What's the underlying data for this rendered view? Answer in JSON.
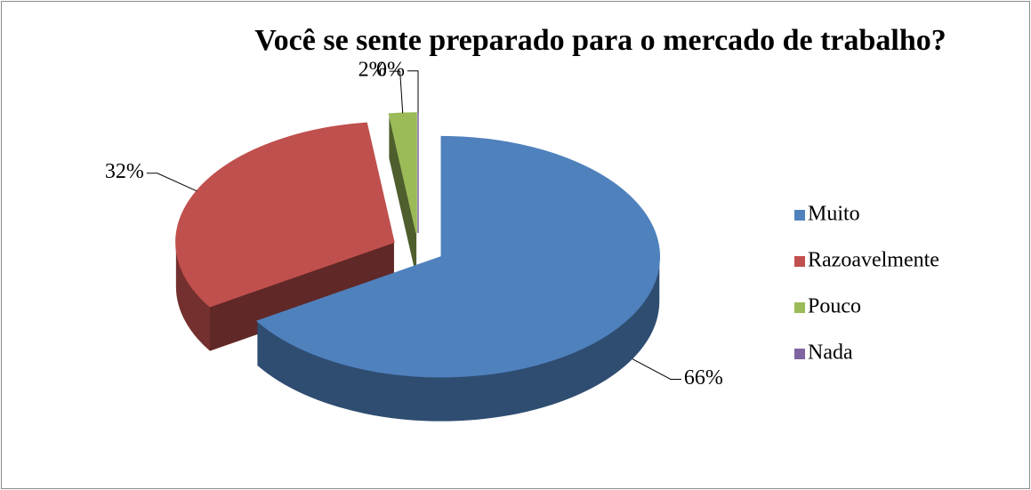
{
  "chart_data": {
    "type": "pie",
    "title": "Você se sente preparado para o mercado de trabalho?",
    "categories": [
      "Muito",
      "Razoavelmente",
      "Pouco",
      "Nada"
    ],
    "values": [
      66,
      32,
      2,
      0
    ],
    "value_labels": [
      "66%",
      "32%",
      "2%",
      "0%"
    ],
    "colors": [
      "#4f81bd",
      "#c0504d",
      "#9bbb59",
      "#8064a2"
    ],
    "legend": "right"
  }
}
